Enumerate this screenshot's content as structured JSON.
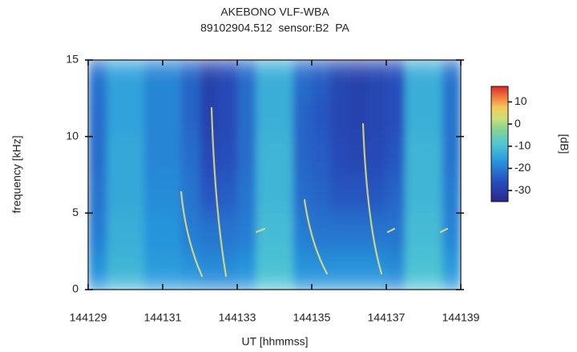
{
  "chart_data": {
    "type": "spectrogram",
    "title": "AKEBONO VLF-WBA",
    "subtitle": "89102904.512  sensor:B2  PA",
    "x_label": "UT [hhmmss]",
    "y_label": "frequency [kHz]",
    "xlim": [
      144129,
      144139
    ],
    "xticks": [
      144129,
      144131,
      144133,
      144135,
      144137,
      144139
    ],
    "ylim": [
      0,
      15
    ],
    "yticks": [
      0,
      5,
      10,
      15
    ],
    "colormap": "jet",
    "clim": [
      -35,
      17
    ],
    "cticks": [
      -30,
      -20,
      -10,
      0,
      10
    ],
    "colorbar_label": "[dB]",
    "z": [
      [
        -17,
        -12,
        -12,
        -16,
        -16,
        -17,
        -18,
        -18,
        -17,
        -10,
        -10,
        -17,
        -17,
        -17,
        -17,
        -17,
        -18,
        -10,
        -10,
        -16
      ],
      [
        -20,
        -13,
        -13,
        -17,
        -17,
        -20,
        -21,
        -21,
        -20,
        -11,
        -11,
        -20,
        -21,
        -21,
        -21,
        -21,
        -21,
        -11,
        -11,
        -19
      ],
      [
        -21,
        -14,
        -14,
        -18,
        -18,
        -21,
        -25,
        -24,
        -21,
        -12,
        -12,
        -22,
        -23,
        -25,
        -25,
        -25,
        -23,
        -12,
        -12,
        -20
      ],
      [
        -22,
        -14,
        -14,
        -19,
        -19,
        -22,
        -27,
        -26,
        -22,
        -12,
        -12,
        -23,
        -24,
        -27,
        -28,
        -27,
        -25,
        -12,
        -12,
        -21
      ],
      [
        -22,
        -15,
        -15,
        -19,
        -19,
        -23,
        -29,
        -27,
        -22,
        -13,
        -13,
        -23,
        -25,
        -28,
        -29,
        -28,
        -26,
        -13,
        -13,
        -21
      ],
      [
        -21,
        -15,
        -15,
        -19,
        -19,
        -23,
        -29,
        -27,
        -22,
        -13,
        -13,
        -22,
        -24,
        -28,
        -29,
        -28,
        -26,
        -13,
        -13,
        -21
      ]
    ]
  }
}
